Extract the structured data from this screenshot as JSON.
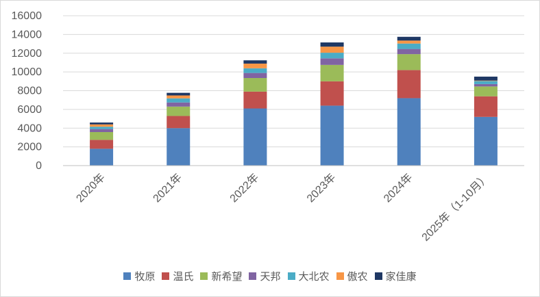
{
  "chart_data": {
    "type": "bar",
    "stacked": true,
    "categories": [
      "2020年",
      "2021年",
      "2022年",
      "2023年",
      "2024年",
      "2025年（1-10月）"
    ],
    "series": [
      {
        "name": "牧原",
        "color": "#4f81bd",
        "values": [
          1800,
          4000,
          6100,
          6400,
          7200,
          5200
        ]
      },
      {
        "name": "温氏",
        "color": "#c0504d",
        "values": [
          950,
          1300,
          1800,
          2600,
          3000,
          2200
        ]
      },
      {
        "name": "新希望",
        "color": "#9bbb59",
        "values": [
          830,
          1000,
          1450,
          1750,
          1700,
          1050
        ]
      },
      {
        "name": "天邦",
        "color": "#8064a2",
        "values": [
          320,
          440,
          540,
          700,
          550,
          250
        ]
      },
      {
        "name": "大北农",
        "color": "#4bacc6",
        "values": [
          250,
          440,
          500,
          600,
          580,
          330
        ]
      },
      {
        "name": "傲农",
        "color": "#f79646",
        "values": [
          250,
          310,
          500,
          650,
          320,
          50
        ]
      },
      {
        "name": "家佳康",
        "color": "#1f3864",
        "values": [
          200,
          280,
          350,
          450,
          400,
          420
        ]
      }
    ],
    "ylim": [
      0,
      16000
    ],
    "yticks": [
      "0",
      "2000",
      "4000",
      "6000",
      "8000",
      "10000",
      "12000",
      "14000",
      "16000"
    ],
    "grid": true,
    "legend_position": "bottom"
  }
}
